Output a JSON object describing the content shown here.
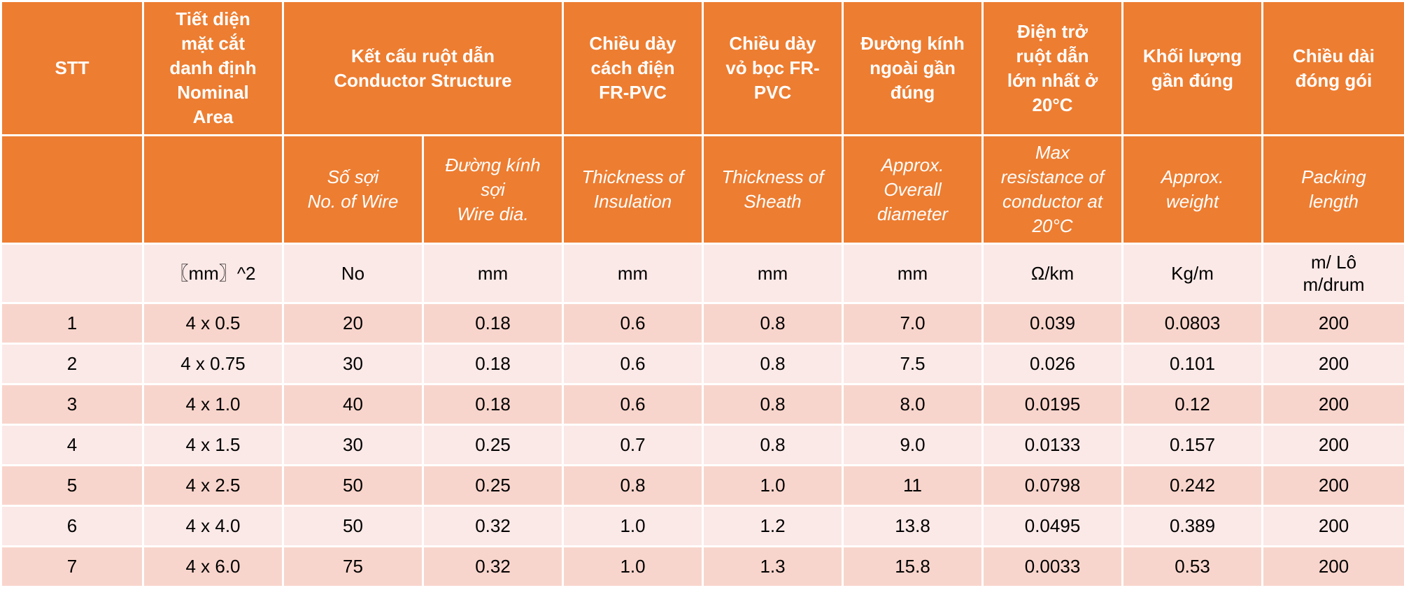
{
  "colors": {
    "header_bg": "#ed7d31",
    "header_text": "#ffffff",
    "row_dark": "#f8d5cc",
    "row_light": "#fbe9e7"
  },
  "header_vi": {
    "stt": "STT",
    "area": "Tiết diện\nmặt cắt\ndanh định\nNominal\nArea",
    "structure": "Kết cấu ruột dẫn\nConductor Structure",
    "insulation": "Chiều dày\ncách điện\nFR-PVC",
    "sheath": "Chiều dày\nvỏ bọc FR-\nPVC",
    "diameter": "Đường kính\nngoài gần\nđúng",
    "resistance": "Điện trở\nruột dẫn\nlớn nhất ở\n20°C",
    "weight": "Khối lượng\ngần đúng",
    "packing": "Chiều dài\nđóng gói"
  },
  "header_en": {
    "stt": "",
    "area": "",
    "wires": "Số sợi\nNo. of Wire",
    "wire_dia": "Đường kính\nsợi\nWire dia.",
    "insulation": "Thickness of\nInsulation",
    "sheath": "Thickness of\nSheath",
    "diameter": "Approx.\nOverall\ndiameter",
    "resistance": "Max\nresistance of\nconductor at\n20°C",
    "weight": "Approx.\nweight",
    "packing": "Packing\nlength"
  },
  "units": {
    "stt": "",
    "area": "〖mm〗^2",
    "wires": "No",
    "wire_dia": "mm",
    "insulation": "mm",
    "sheath": "mm",
    "diameter": "mm",
    "resistance": "Ω/km",
    "weight": "Kg/m",
    "packing": "m/ Lô\nm/drum"
  },
  "rows": [
    [
      "1",
      "4 x 0.5",
      "20",
      "0.18",
      "0.6",
      "0.8",
      "7.0",
      "0.039",
      "0.0803",
      "200"
    ],
    [
      "2",
      "4 x 0.75",
      "30",
      "0.18",
      "0.6",
      "0.8",
      "7.5",
      "0.026",
      "0.101",
      "200"
    ],
    [
      "3",
      "4 x 1.0",
      "40",
      "0.18",
      "0.6",
      "0.8",
      "8.0",
      "0.0195",
      "0.12",
      "200"
    ],
    [
      "4",
      "4 x 1.5",
      "30",
      "0.25",
      "0.7",
      "0.8",
      "9.0",
      "0.0133",
      "0.157",
      "200"
    ],
    [
      "5",
      "4 x 2.5",
      "50",
      "0.25",
      "0.8",
      "1.0",
      "11",
      "0.0798",
      "0.242",
      "200"
    ],
    [
      "6",
      "4 x 4.0",
      "50",
      "0.32",
      "1.0",
      "1.2",
      "13.8",
      "0.0495",
      "0.389",
      "200"
    ],
    [
      "7",
      "4 x 6.0",
      "75",
      "0.32",
      "1.0",
      "1.3",
      "15.8",
      "0.0033",
      "0.53",
      "200"
    ]
  ]
}
